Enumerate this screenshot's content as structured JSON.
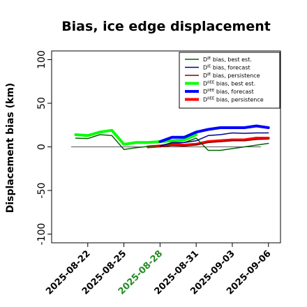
{
  "chart_data": {
    "type": "line",
    "title": "Bias, ice edge displacement",
    "ylabel": "Displacement bias (km)",
    "xlabel": "",
    "ylim": [
      -110,
      110
    ],
    "yticks": [
      -100,
      -50,
      0,
      50,
      100
    ],
    "xlim": [
      "2025-08-19",
      "2025-09-07"
    ],
    "xticks": [
      {
        "date": "2025-08-22",
        "label": "2025-08-22",
        "color": "#000000"
      },
      {
        "date": "2025-08-25",
        "label": "2025-08-25",
        "color": "#000000"
      },
      {
        "date": "2025-08-28",
        "label": "2025-08-28",
        "color": "#228B22"
      },
      {
        "date": "2025-08-31",
        "label": "2025-08-31",
        "color": "#000000"
      },
      {
        "date": "2025-09-03",
        "label": "2025-09-03",
        "color": "#000000"
      },
      {
        "date": "2025-09-06",
        "label": "2025-09-06",
        "color": "#000000"
      }
    ],
    "reference_line": {
      "y": 0,
      "color": "#555555"
    },
    "legend_position": "top-right",
    "series": [
      {
        "name_prefix": "D",
        "name_sup": "IE",
        "name_suffix": " bias, best est.",
        "color": "#006400",
        "width": 1.5,
        "points": [
          [
            "2025-08-21",
            10
          ],
          [
            "2025-08-22",
            9.5
          ],
          [
            "2025-08-23",
            14
          ],
          [
            "2025-08-24",
            13
          ],
          [
            "2025-08-25",
            -3
          ],
          [
            "2025-08-26",
            -1
          ],
          [
            "2025-08-27",
            0.5
          ],
          [
            "2025-08-28",
            1.5
          ],
          [
            "2025-08-29",
            4
          ],
          [
            "2025-08-30",
            5
          ],
          [
            "2025-08-31",
            10
          ],
          [
            "2025-09-01",
            -4
          ],
          [
            "2025-09-02",
            -4
          ],
          [
            "2025-09-03",
            -2
          ],
          [
            "2025-09-04",
            0
          ],
          [
            "2025-09-05",
            2
          ],
          [
            "2025-09-06",
            4
          ]
        ]
      },
      {
        "name_prefix": "D",
        "name_sup": "IE",
        "name_suffix": " bias, forecast",
        "color": "#00008B",
        "width": 1.5,
        "points": [
          [
            "2025-08-28",
            1
          ],
          [
            "2025-08-29",
            5
          ],
          [
            "2025-08-30",
            5
          ],
          [
            "2025-08-31",
            7
          ],
          [
            "2025-09-01",
            13
          ],
          [
            "2025-09-02",
            14
          ],
          [
            "2025-09-03",
            16
          ],
          [
            "2025-09-04",
            15.5
          ],
          [
            "2025-09-05",
            16
          ],
          [
            "2025-09-06",
            16
          ]
        ]
      },
      {
        "name_prefix": "D",
        "name_sup": "IE",
        "name_suffix": " bias, persistence",
        "color": "#8B0000",
        "width": 1.5,
        "points": [
          [
            "2025-08-28",
            0
          ],
          [
            "2025-08-29",
            1.5
          ],
          [
            "2025-08-30",
            1
          ],
          [
            "2025-08-31",
            2.5
          ],
          [
            "2025-09-01",
            5
          ],
          [
            "2025-09-02",
            6
          ],
          [
            "2025-09-03",
            7
          ],
          [
            "2025-09-04",
            7
          ],
          [
            "2025-09-05",
            8.5
          ],
          [
            "2025-09-06",
            9
          ]
        ]
      },
      {
        "name_prefix": "D",
        "name_sup": "IIEE",
        "name_suffix": " bias, best est.",
        "color": "#00FF00",
        "width": 4,
        "points": [
          [
            "2025-08-21",
            14
          ],
          [
            "2025-08-22",
            13
          ],
          [
            "2025-08-23",
            17
          ],
          [
            "2025-08-24",
            19
          ],
          [
            "2025-08-25",
            3
          ],
          [
            "2025-08-26",
            5
          ],
          [
            "2025-08-27",
            5
          ],
          [
            "2025-08-28",
            6
          ],
          [
            "2025-08-29",
            7
          ],
          [
            "2025-08-30",
            8
          ],
          [
            "2025-08-31",
            14
          ]
        ]
      },
      {
        "name_prefix": "D",
        "name_sup": "IIEE",
        "name_suffix": " bias, forecast",
        "color": "#0000FF",
        "width": 4,
        "points": [
          [
            "2025-08-28",
            6
          ],
          [
            "2025-08-29",
            11
          ],
          [
            "2025-08-30",
            11
          ],
          [
            "2025-08-31",
            17
          ],
          [
            "2025-09-01",
            20
          ],
          [
            "2025-09-02",
            22
          ],
          [
            "2025-09-03",
            22
          ],
          [
            "2025-09-04",
            22
          ],
          [
            "2025-09-05",
            24
          ],
          [
            "2025-09-06",
            22
          ]
        ]
      },
      {
        "name_prefix": "D",
        "name_sup": "IIEE",
        "name_suffix": " bias, persistence",
        "color": "#FF0000",
        "width": 4,
        "points": [
          [
            "2025-08-27",
            0
          ],
          [
            "2025-08-28",
            1
          ],
          [
            "2025-08-29",
            3
          ],
          [
            "2025-08-30",
            2
          ],
          [
            "2025-08-31",
            3
          ],
          [
            "2025-09-01",
            6
          ],
          [
            "2025-09-02",
            7
          ],
          [
            "2025-09-03",
            8
          ],
          [
            "2025-09-04",
            8
          ],
          [
            "2025-09-05",
            10
          ],
          [
            "2025-09-06",
            10
          ]
        ]
      }
    ]
  }
}
